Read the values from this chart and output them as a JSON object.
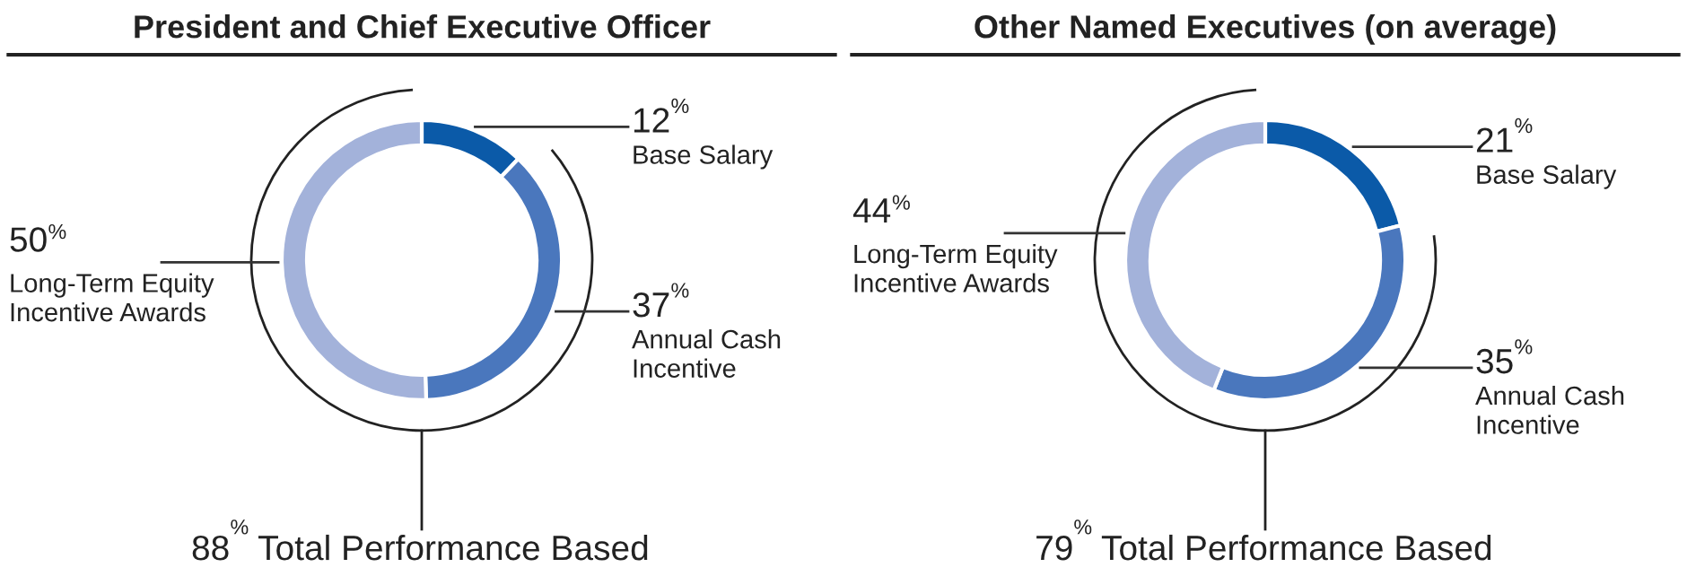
{
  "chart_data": [
    {
      "type": "donut",
      "title": "President and Chief Executive Officer",
      "categories": [
        "Base Salary",
        "Annual Cash\nIncentive",
        "Long-Term Equity\nIncentive Awards"
      ],
      "values": [
        12,
        37,
        50
      ],
      "value_labels": [
        "12$^{%}$",
        "37$^{%}$",
        "50$^{%}$"
      ],
      "colors": [
        "#0b5aa8",
        "#4a77bd",
        "#a3b2da"
      ],
      "annotations": [
        "88$^{%}$ Total Performance Based"
      ]
    },
    {
      "type": "donut",
      "title": "Other Named Executives (on average)",
      "categories": [
        "Base Salary",
        "Annual Cash\nIncentive",
        "Long-Term Equity\nIncentive Awards"
      ],
      "values": [
        21,
        35,
        44
      ],
      "value_labels": [
        "21$^{%}$",
        "35$^{%}$",
        "44$^{%}$"
      ],
      "colors": [
        "#0b5aa8",
        "#4a77bd",
        "#a3b2da"
      ],
      "annotations": [
        "79$^{%}$ Total Performance Based"
      ]
    }
  ]
}
